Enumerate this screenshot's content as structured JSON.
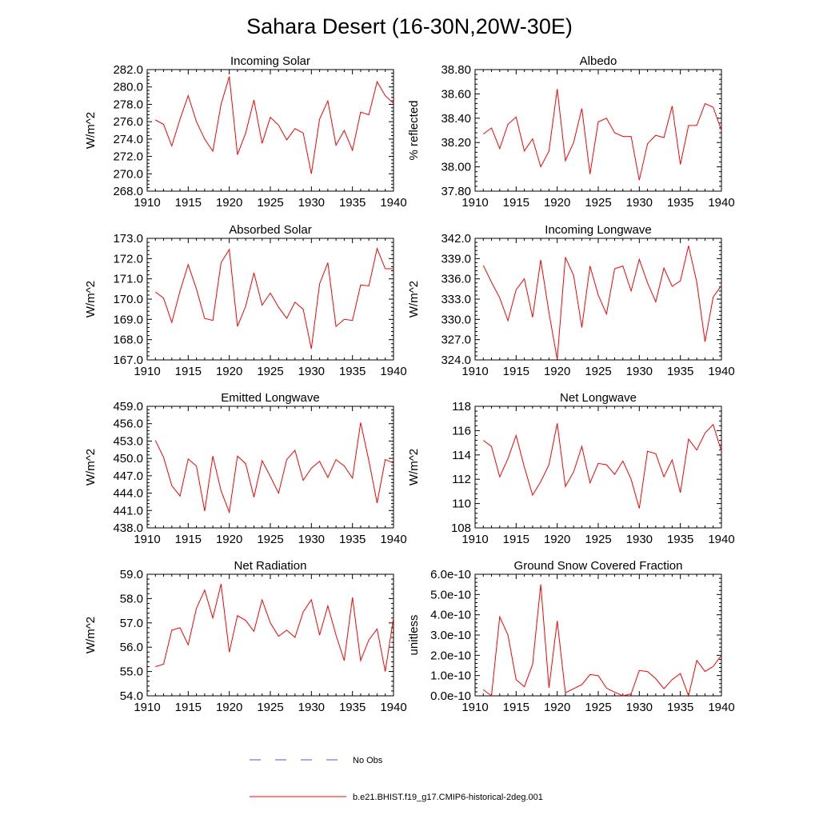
{
  "title": "Sahara Desert (16-30N,20W-30E)",
  "colors": {
    "model": "#ff0000",
    "obs": "#5555cc"
  },
  "legend": {
    "obs_label": "No Obs",
    "model_label": "b.e21.BHIST.f19_g17.CMIP6-historical-2deg.001"
  },
  "chart_data": [
    {
      "type": "line",
      "title": "Incoming Solar",
      "xlabel": "",
      "ylabel": "W/m^2",
      "xlim": [
        1910,
        1940
      ],
      "ylim": [
        268,
        282
      ],
      "xticks": [
        "1910",
        "1915",
        "1920",
        "1925",
        "1930",
        "1935",
        "1940"
      ],
      "yticks": [
        "268.0",
        "270.0",
        "272.0",
        "274.0",
        "276.0",
        "278.0",
        "280.0",
        "282.0"
      ],
      "x": [
        1911,
        1912,
        1913,
        1914,
        1915,
        1916,
        1917,
        1918,
        1919,
        1920,
        1921,
        1922,
        1923,
        1924,
        1925,
        1926,
        1927,
        1928,
        1929,
        1930,
        1931,
        1932,
        1933,
        1934,
        1935,
        1936,
        1937,
        1938,
        1939,
        1940
      ],
      "series": [
        {
          "name": "b.e21.BHIST.f19_g17.CMIP6-historical-2deg.001",
          "values": [
            276.2,
            275.7,
            273.2,
            276.3,
            279.0,
            276.0,
            274.0,
            272.6,
            278.0,
            281.2,
            272.2,
            274.7,
            278.5,
            273.5,
            276.5,
            275.6,
            273.9,
            275.2,
            274.7,
            270.0,
            276.3,
            278.4,
            273.3,
            275.0,
            272.7,
            277.1,
            276.8,
            280.6,
            279.0,
            278.1
          ]
        }
      ]
    },
    {
      "type": "line",
      "title": "Albedo",
      "xlabel": "",
      "ylabel": "% reflected",
      "xlim": [
        1910,
        1940
      ],
      "ylim": [
        37.8,
        38.8
      ],
      "xticks": [
        "1910",
        "1915",
        "1920",
        "1925",
        "1930",
        "1935",
        "1940"
      ],
      "yticks": [
        "37.80",
        "38.00",
        "38.20",
        "38.40",
        "38.60",
        "38.80"
      ],
      "x": [
        1911,
        1912,
        1913,
        1914,
        1915,
        1916,
        1917,
        1918,
        1919,
        1920,
        1921,
        1922,
        1923,
        1924,
        1925,
        1926,
        1927,
        1928,
        1929,
        1930,
        1931,
        1932,
        1933,
        1934,
        1935,
        1936,
        1937,
        1938,
        1939,
        1940
      ],
      "series": [
        {
          "name": "b.e21.BHIST.f19_g17.CMIP6-historical-2deg.001",
          "values": [
            38.27,
            38.32,
            38.15,
            38.35,
            38.41,
            38.13,
            38.23,
            38.0,
            38.13,
            38.64,
            38.05,
            38.2,
            38.48,
            37.94,
            38.37,
            38.4,
            38.28,
            38.25,
            38.25,
            37.89,
            38.19,
            38.26,
            38.24,
            38.5,
            38.02,
            38.34,
            38.34,
            38.52,
            38.49,
            38.3
          ]
        }
      ]
    },
    {
      "type": "line",
      "title": "Absorbed Solar",
      "xlabel": "",
      "ylabel": "W/m^2",
      "xlim": [
        1910,
        1940
      ],
      "ylim": [
        167,
        173
      ],
      "xticks": [
        "1910",
        "1915",
        "1920",
        "1925",
        "1930",
        "1935",
        "1940"
      ],
      "yticks": [
        "167.0",
        "168.0",
        "169.0",
        "170.0",
        "171.0",
        "172.0",
        "173.0"
      ],
      "x": [
        1911,
        1912,
        1913,
        1914,
        1915,
        1916,
        1917,
        1918,
        1919,
        1920,
        1921,
        1922,
        1923,
        1924,
        1925,
        1926,
        1927,
        1928,
        1929,
        1930,
        1931,
        1932,
        1933,
        1934,
        1935,
        1936,
        1937,
        1938,
        1939,
        1940
      ],
      "series": [
        {
          "name": "b.e21.BHIST.f19_g17.CMIP6-historical-2deg.001",
          "values": [
            170.35,
            170.05,
            168.85,
            170.4,
            171.7,
            170.5,
            169.05,
            168.95,
            171.8,
            172.45,
            168.65,
            169.65,
            171.3,
            169.7,
            170.3,
            169.6,
            169.05,
            169.85,
            169.5,
            167.55,
            170.75,
            171.8,
            168.65,
            169.0,
            168.95,
            170.7,
            170.65,
            172.5,
            171.5,
            171.5
          ]
        }
      ]
    },
    {
      "type": "line",
      "title": "Incoming Longwave",
      "xlabel": "",
      "ylabel": "W/m^2",
      "xlim": [
        1910,
        1940
      ],
      "ylim": [
        324,
        342
      ],
      "xticks": [
        "1910",
        "1915",
        "1920",
        "1925",
        "1930",
        "1935",
        "1940"
      ],
      "yticks": [
        "324.0",
        "327.0",
        "330.0",
        "333.0",
        "336.0",
        "339.0",
        "342.0"
      ],
      "x": [
        1911,
        1912,
        1913,
        1914,
        1915,
        1916,
        1917,
        1918,
        1919,
        1920,
        1921,
        1922,
        1923,
        1924,
        1925,
        1926,
        1927,
        1928,
        1929,
        1930,
        1931,
        1932,
        1933,
        1934,
        1935,
        1936,
        1937,
        1938,
        1939,
        1940
      ],
      "series": [
        {
          "name": "b.e21.BHIST.f19_g17.CMIP6-historical-2deg.001",
          "values": [
            338.0,
            335.5,
            333.2,
            329.8,
            334.4,
            336.0,
            330.3,
            338.8,
            331.0,
            324.1,
            339.2,
            336.5,
            328.8,
            337.9,
            333.6,
            330.8,
            337.5,
            337.9,
            334.2,
            338.9,
            335.4,
            332.6,
            337.6,
            334.9,
            335.7,
            340.9,
            335.5,
            326.7,
            333.3,
            335.0
          ]
        }
      ]
    },
    {
      "type": "line",
      "title": "Emitted Longwave",
      "xlabel": "",
      "ylabel": "W/m^2",
      "xlim": [
        1910,
        1940
      ],
      "ylim": [
        438,
        459
      ],
      "xticks": [
        "1910",
        "1915",
        "1920",
        "1925",
        "1930",
        "1935",
        "1940"
      ],
      "yticks": [
        "438.0",
        "441.0",
        "444.0",
        "447.0",
        "450.0",
        "453.0",
        "456.0",
        "459.0"
      ],
      "x": [
        1911,
        1912,
        1913,
        1914,
        1915,
        1916,
        1917,
        1918,
        1919,
        1920,
        1921,
        1922,
        1923,
        1924,
        1925,
        1926,
        1927,
        1928,
        1929,
        1930,
        1931,
        1932,
        1933,
        1934,
        1935,
        1936,
        1937,
        1938,
        1939,
        1940
      ],
      "series": [
        {
          "name": "b.e21.BHIST.f19_g17.CMIP6-historical-2deg.001",
          "values": [
            453.1,
            450.2,
            445.3,
            443.5,
            449.9,
            448.7,
            440.9,
            450.4,
            444.4,
            440.7,
            450.4,
            449.1,
            443.3,
            449.6,
            446.9,
            444.0,
            449.8,
            451.4,
            446.2,
            448.3,
            449.5,
            446.7,
            449.8,
            448.7,
            446.6,
            456.2,
            449.6,
            442.3,
            449.8,
            449.2
          ]
        }
      ]
    },
    {
      "type": "line",
      "title": "Net Longwave",
      "xlabel": "",
      "ylabel": "W/m^2",
      "xlim": [
        1910,
        1940
      ],
      "ylim": [
        108,
        118
      ],
      "xticks": [
        "1910",
        "1915",
        "1920",
        "1925",
        "1930",
        "1935",
        "1940"
      ],
      "yticks": [
        "108",
        "110",
        "112",
        "114",
        "116",
        "118"
      ],
      "x": [
        1911,
        1912,
        1913,
        1914,
        1915,
        1916,
        1917,
        1918,
        1919,
        1920,
        1921,
        1922,
        1923,
        1924,
        1925,
        1926,
        1927,
        1928,
        1929,
        1930,
        1931,
        1932,
        1933,
        1934,
        1935,
        1936,
        1937,
        1938,
        1939,
        1940
      ],
      "series": [
        {
          "name": "b.e21.BHIST.f19_g17.CMIP6-historical-2deg.001",
          "values": [
            115.2,
            114.7,
            112.2,
            113.7,
            115.6,
            113.0,
            110.7,
            111.8,
            113.2,
            116.6,
            111.4,
            112.6,
            114.7,
            111.7,
            113.3,
            113.2,
            112.4,
            113.5,
            112.0,
            109.6,
            114.3,
            114.1,
            112.2,
            113.6,
            110.9,
            115.3,
            114.4,
            115.8,
            116.5,
            114.3
          ]
        }
      ]
    },
    {
      "type": "line",
      "title": "Net Radiation",
      "xlabel": "",
      "ylabel": "W/m^2",
      "xlim": [
        1910,
        1940
      ],
      "ylim": [
        54,
        59
      ],
      "xticks": [
        "1910",
        "1915",
        "1920",
        "1925",
        "1930",
        "1935",
        "1940"
      ],
      "yticks": [
        "54.0",
        "55.0",
        "56.0",
        "57.0",
        "58.0",
        "59.0"
      ],
      "x": [
        1911,
        1912,
        1913,
        1914,
        1915,
        1916,
        1917,
        1918,
        1919,
        1920,
        1921,
        1922,
        1923,
        1924,
        1925,
        1926,
        1927,
        1928,
        1929,
        1930,
        1931,
        1932,
        1933,
        1934,
        1935,
        1936,
        1937,
        1938,
        1939,
        1940
      ],
      "series": [
        {
          "name": "b.e21.BHIST.f19_g17.CMIP6-historical-2deg.001",
          "values": [
            55.2,
            55.3,
            56.7,
            56.8,
            56.1,
            57.6,
            58.35,
            57.2,
            58.6,
            55.8,
            57.3,
            57.1,
            56.65,
            57.95,
            57.0,
            56.45,
            56.7,
            56.4,
            57.45,
            57.95,
            56.5,
            57.7,
            56.5,
            55.45,
            58.05,
            55.45,
            56.3,
            56.75,
            55.0,
            57.2
          ]
        }
      ]
    },
    {
      "type": "line",
      "title": "Ground Snow Covered Fraction",
      "xlabel": "",
      "ylabel": "unitless",
      "xlim": [
        1910,
        1940
      ],
      "ylim": [
        0,
        6e-10
      ],
      "xticks": [
        "1910",
        "1915",
        "1920",
        "1925",
        "1930",
        "1935",
        "1940"
      ],
      "yticks": [
        "0.0e-10",
        "1.0e-10",
        "2.0e-10",
        "3.0e-10",
        "4.0e-10",
        "5.0e-10",
        "6.0e-10"
      ],
      "x": [
        1911,
        1912,
        1913,
        1914,
        1915,
        1916,
        1917,
        1918,
        1919,
        1920,
        1921,
        1922,
        1923,
        1924,
        1925,
        1926,
        1927,
        1928,
        1929,
        1930,
        1931,
        1932,
        1933,
        1934,
        1935,
        1936,
        1937,
        1938,
        1939,
        1940
      ],
      "series": [
        {
          "name": "b.e21.BHIST.f19_g17.CMIP6-historical-2deg.001",
          "values": [
            3e-11,
            0,
            3.9e-10,
            3e-10,
            8e-11,
            4.5e-11,
            1.55e-10,
            5.5e-10,
            4e-11,
            3.7e-10,
            1.5e-11,
            3.5e-11,
            5.5e-11,
            1.05e-10,
            1e-10,
            3.8e-11,
            1.8e-11,
            0,
            1e-11,
            1.25e-10,
            1.2e-10,
            8.5e-11,
            3.5e-11,
            8e-11,
            1.1e-10,
            0,
            1.75e-10,
            1.2e-10,
            1.45e-10,
            2e-10
          ]
        }
      ]
    }
  ]
}
